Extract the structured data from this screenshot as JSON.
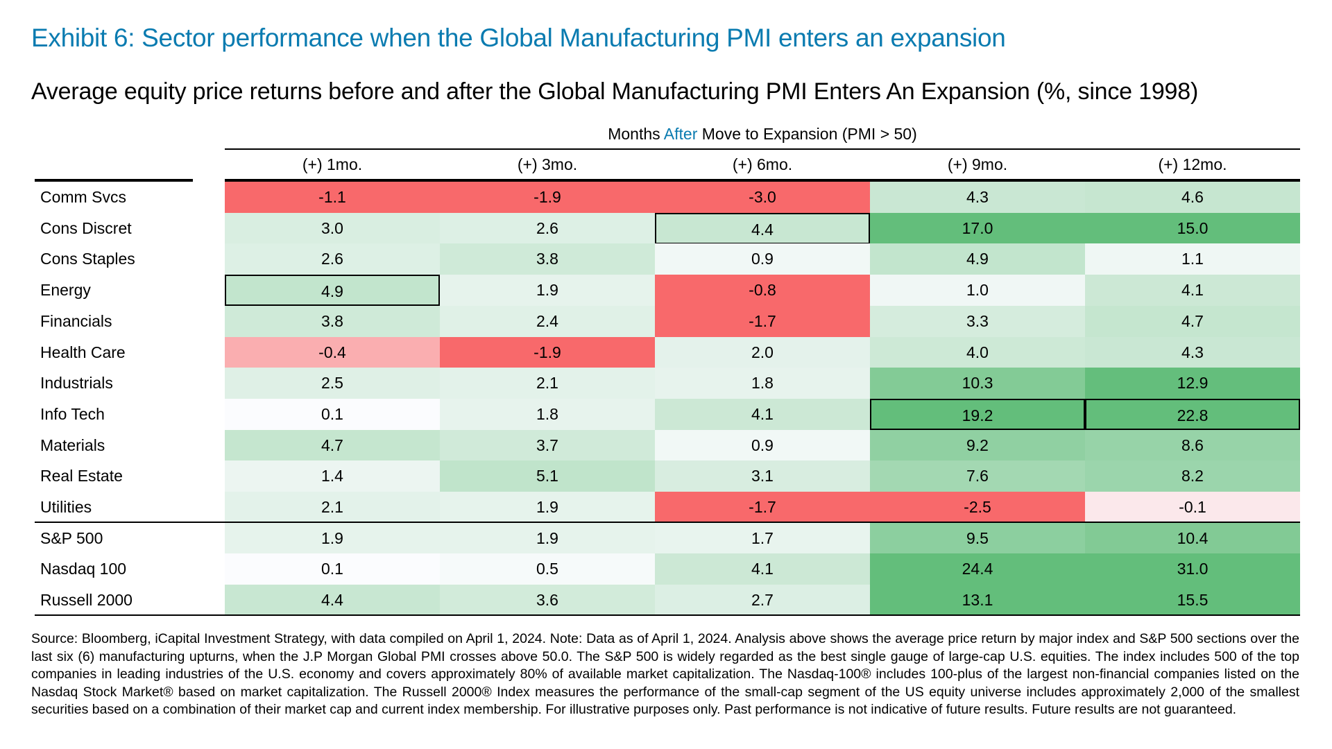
{
  "title": "Exhibit 6: Sector performance when the Global Manufacturing PMI enters an expansion",
  "subtitle": "Average equity price returns before and after the Global Manufacturing PMI Enters An Expansion (%, since 1998)",
  "group_header": {
    "before": "Months ",
    "accent": "After",
    "after": " Move to Expansion (PMI > 50)"
  },
  "colors": {
    "title": "#0a7bb0",
    "negative": "#F8696B",
    "neutral": "#FCFCFF",
    "positive": "#63BE7B"
  },
  "chart_data": {
    "type": "table",
    "columns": [
      "(+) 1mo.",
      "(+) 3mo.",
      "(+) 6mo.",
      "(+) 9mo.",
      "(+) 12mo."
    ],
    "rows": [
      {
        "label": "Comm Svcs",
        "values": [
          -1.1,
          -1.9,
          -3.0,
          4.3,
          4.6
        ],
        "boxed": []
      },
      {
        "label": "Cons Discret",
        "values": [
          3.0,
          2.6,
          4.4,
          17.0,
          15.0
        ],
        "boxed": [
          2
        ]
      },
      {
        "label": "Cons Staples",
        "values": [
          2.6,
          3.8,
          0.9,
          4.9,
          1.1
        ],
        "boxed": []
      },
      {
        "label": "Energy",
        "values": [
          4.9,
          1.9,
          -0.8,
          1.0,
          4.1
        ],
        "boxed": [
          0
        ]
      },
      {
        "label": "Financials",
        "values": [
          3.8,
          2.4,
          -1.7,
          3.3,
          4.7
        ],
        "boxed": []
      },
      {
        "label": "Health Care",
        "values": [
          -0.4,
          -1.9,
          2.0,
          4.0,
          4.3
        ],
        "boxed": []
      },
      {
        "label": "Industrials",
        "values": [
          2.5,
          2.1,
          1.8,
          10.3,
          12.9
        ],
        "boxed": []
      },
      {
        "label": "Info Tech",
        "values": [
          0.1,
          1.8,
          4.1,
          19.2,
          22.8
        ],
        "boxed": [
          3,
          4
        ]
      },
      {
        "label": "Materials",
        "values": [
          4.7,
          3.7,
          0.9,
          9.2,
          8.6
        ],
        "boxed": []
      },
      {
        "label": "Real Estate",
        "values": [
          1.4,
          5.1,
          3.1,
          7.6,
          8.2
        ],
        "boxed": []
      },
      {
        "label": "Utilities",
        "values": [
          2.1,
          1.9,
          -1.7,
          -2.5,
          -0.1
        ],
        "boxed": []
      },
      {
        "label": "S&P 500",
        "values": [
          1.9,
          1.9,
          1.7,
          9.5,
          10.4
        ],
        "boxed": []
      },
      {
        "label": "Nasdaq 100",
        "values": [
          0.1,
          0.5,
          4.1,
          24.4,
          31.0
        ],
        "boxed": []
      },
      {
        "label": "Russell 2000",
        "values": [
          4.4,
          3.6,
          2.7,
          13.1,
          15.5
        ],
        "boxed": []
      }
    ]
  },
  "footnote": "Source: Bloomberg, iCapital Investment Strategy, with data compiled on April 1, 2024. Note: Data as of April 1, 2024. Analysis above shows the average price return by major index and S&P 500 sections over the last six (6) manufacturing upturns, when the J.P Morgan Global PMI crosses above 50.0. The S&P 500 is widely regarded as the best single gauge of large-cap U.S. equities. The index includes 500 of the top companies in leading industries of the U.S. economy and covers approximately 80% of available market capitalization. The Nasdaq-100® includes 100-plus of the largest non-financial companies listed on the Nasdaq Stock Market® based on market capitalization. The Russell 2000® Index measures the performance of the small-cap segment of the US equity universe includes approximately 2,000 of the smallest securities based on a combination of their market cap and current index membership. For illustrative purposes only. Past performance is not indicative of future results. Future results are not guaranteed."
}
